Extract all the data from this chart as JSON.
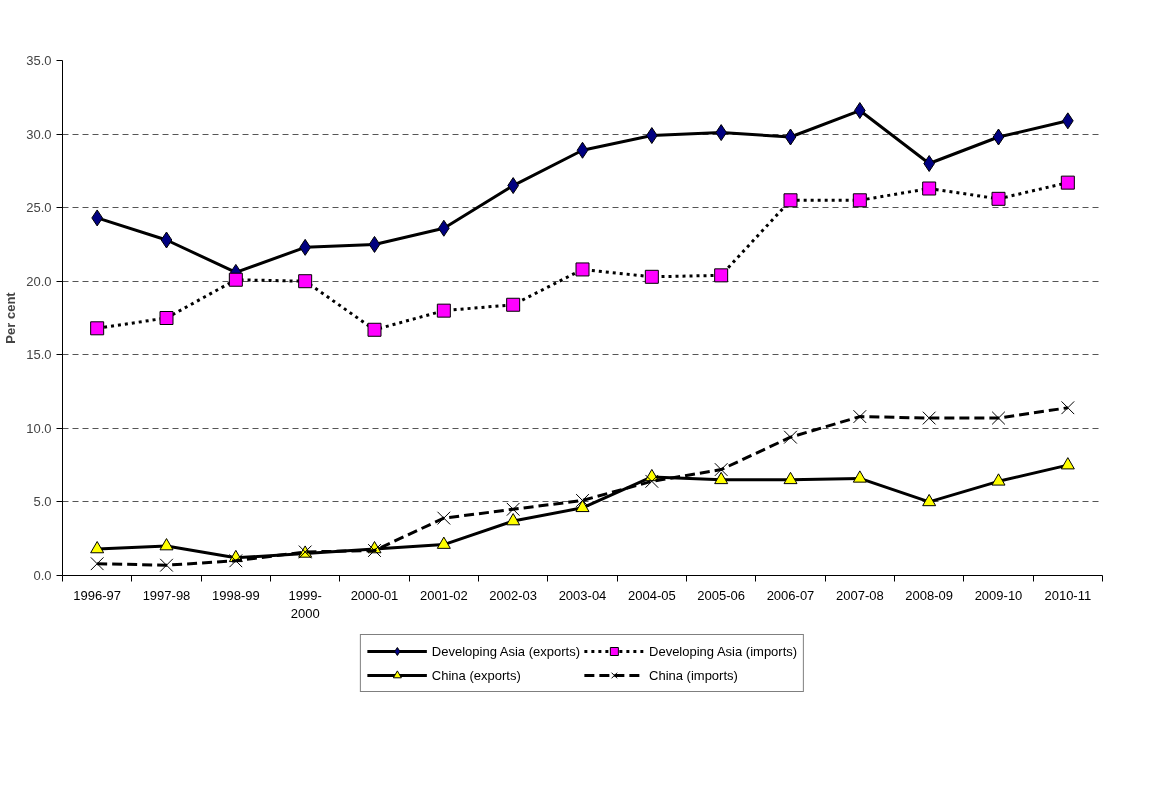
{
  "chart_data": {
    "type": "line",
    "ylabel": "Per cent",
    "categories": [
      "1996-97",
      "1997-98",
      "1998-99",
      "1999-2000",
      "2000-01",
      "2001-02",
      "2002-03",
      "2003-04",
      "2004-05",
      "2005-06",
      "2006-07",
      "2007-08",
      "2008-09",
      "2009-10",
      "2010-11"
    ],
    "series": [
      {
        "name": "Developing Asia (exports)",
        "color": "#000080",
        "marker": "diamond",
        "line_style": "solid",
        "values": [
          24.3,
          22.8,
          20.6,
          22.3,
          22.5,
          23.6,
          26.5,
          28.9,
          29.9,
          30.1,
          29.8,
          31.6,
          28.0,
          29.8,
          30.9
        ]
      },
      {
        "name": "Developing Asia (imports)",
        "color": "#ff00ff",
        "marker": "square",
        "line_style": "dotted",
        "values": [
          16.8,
          17.5,
          20.1,
          20.0,
          16.7,
          18.0,
          18.4,
          20.8,
          20.3,
          20.4,
          25.5,
          25.5,
          26.3,
          25.6,
          26.7
        ]
      },
      {
        "name": "China (exports)",
        "color": "#ffff00",
        "marker": "triangle",
        "line_style": "solid",
        "values": [
          1.8,
          2.0,
          1.2,
          1.5,
          1.8,
          2.1,
          3.7,
          4.6,
          6.7,
          6.5,
          6.5,
          6.6,
          5.0,
          6.4,
          7.5
        ]
      },
      {
        "name": "China (imports)",
        "color": "#000000",
        "marker": "cross",
        "line_style": "dashed",
        "values": [
          0.8,
          0.7,
          1.0,
          1.6,
          1.7,
          3.9,
          4.5,
          5.1,
          6.4,
          7.2,
          9.4,
          10.8,
          10.7,
          10.7,
          11.4
        ]
      }
    ],
    "ylim": [
      0,
      35
    ],
    "yticks": [
      {
        "value": 0,
        "label": "0.0"
      },
      {
        "value": 5,
        "label": "5.0"
      },
      {
        "value": 10,
        "label": "10.0"
      },
      {
        "value": 15,
        "label": "15.0"
      },
      {
        "value": 20,
        "label": "20.0"
      },
      {
        "value": 25,
        "label": "25.0"
      },
      {
        "value": 30,
        "label": "30.0"
      },
      {
        "value": 35,
        "label": "35.0"
      }
    ],
    "grid": "y",
    "legend": "bottom"
  }
}
